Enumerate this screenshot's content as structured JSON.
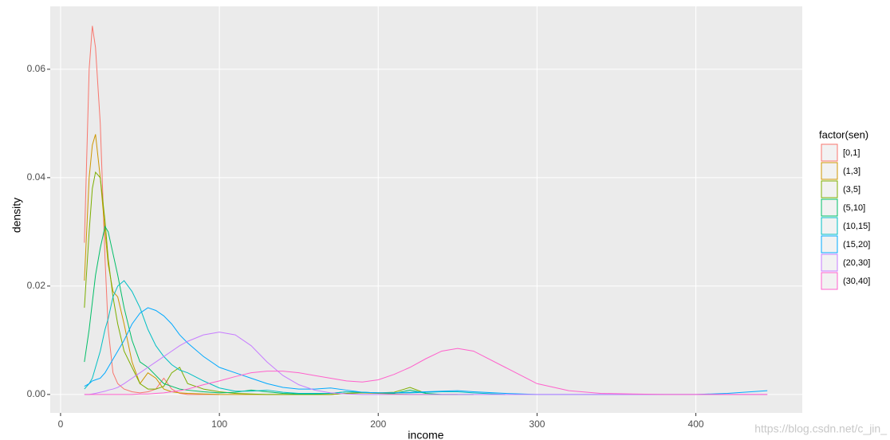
{
  "chart_data": {
    "type": "line",
    "x_label": "income",
    "y_label": "density",
    "legend_title": "factor(sen)",
    "watermark": "https://blog.csdn.net/c_jin_",
    "x": [
      15,
      18,
      20,
      22,
      25,
      28,
      30,
      33,
      36,
      40,
      45,
      50,
      55,
      60,
      65,
      70,
      75,
      80,
      90,
      100,
      110,
      120,
      130,
      140,
      150,
      160,
      170,
      180,
      190,
      200,
      210,
      220,
      230,
      240,
      250,
      260,
      280,
      300,
      320,
      340,
      360,
      380,
      400,
      420,
      445
    ],
    "series": [
      {
        "name": "[0,1]",
        "color": "#F8766D",
        "values": [
          0.028,
          0.06,
          0.068,
          0.064,
          0.05,
          0.025,
          0.012,
          0.004,
          0.002,
          0.001,
          0.0005,
          0.0003,
          0.0005,
          0.001,
          0.003,
          0.001,
          0.0002,
          0,
          0,
          0,
          null,
          null,
          null,
          null,
          null,
          null,
          null,
          null,
          null,
          null,
          null,
          null,
          null,
          null,
          null,
          null,
          null,
          null,
          null,
          null,
          null,
          null,
          null,
          null,
          null
        ]
      },
      {
        "name": "(1,3]",
        "color": "#CD9600",
        "values": [
          0.021,
          0.04,
          0.046,
          0.048,
          0.04,
          0.03,
          0.024,
          0.019,
          0.018,
          0.013,
          0.006,
          0.002,
          0.004,
          0.003,
          0.001,
          0.0005,
          0.0003,
          0.0002,
          0.0001,
          0,
          0,
          0,
          0,
          0,
          0,
          0,
          0,
          0.0002,
          0.0003,
          0.0002,
          0.0001,
          0,
          0,
          0,
          0,
          null,
          null,
          null,
          null,
          null,
          null,
          null,
          null,
          null,
          null
        ]
      },
      {
        "name": "(3,5]",
        "color": "#7CAE00",
        "values": [
          0.016,
          0.03,
          0.038,
          0.041,
          0.04,
          0.032,
          0.025,
          0.018,
          0.013,
          0.008,
          0.005,
          0.002,
          0.001,
          0.001,
          0.0015,
          0.004,
          0.005,
          0.002,
          0.001,
          0.0005,
          0.0002,
          0.0001,
          0,
          0,
          0,
          0,
          0,
          0.0002,
          0.0003,
          0.0003,
          0.0004,
          0.0013,
          0.0002,
          null,
          null,
          null,
          null,
          null,
          null,
          null,
          null,
          null,
          null,
          null,
          null
        ]
      },
      {
        "name": "(5,10]",
        "color": "#00BE67",
        "values": [
          0.006,
          0.012,
          0.017,
          0.022,
          0.027,
          0.031,
          0.03,
          0.026,
          0.022,
          0.016,
          0.01,
          0.006,
          0.005,
          0.0035,
          0.002,
          0.0015,
          0.001,
          0.0008,
          0.0005,
          0.0003,
          0.0004,
          0.0008,
          0.0005,
          0.0002,
          0.0001,
          0.0001,
          0.0002,
          0.0005,
          0.0004,
          0.0003,
          0.0002,
          0.0008,
          0.0002,
          0,
          0,
          0,
          null,
          null,
          null,
          null,
          null,
          null,
          null,
          null,
          null
        ]
      },
      {
        "name": "(10,15]",
        "color": "#00BFC4",
        "values": [
          0.001,
          0.002,
          0.003,
          0.005,
          0.008,
          0.012,
          0.014,
          0.018,
          0.02,
          0.021,
          0.019,
          0.016,
          0.012,
          0.009,
          0.007,
          0.0055,
          0.0045,
          0.004,
          0.0025,
          0.0012,
          0.0006,
          0.0006,
          0.0008,
          0.0004,
          0.0002,
          0.0002,
          0.0002,
          0.0005,
          0.0004,
          0.0003,
          0.0003,
          0.0003,
          0.0004,
          0.0005,
          0.0005,
          0.0003,
          0,
          null,
          null,
          null,
          null,
          null,
          null,
          null,
          null
        ]
      },
      {
        "name": "(15,20]",
        "color": "#00A9FF",
        "values": [
          0.0015,
          0.002,
          0.0025,
          0.0027,
          0.003,
          0.004,
          0.005,
          0.0065,
          0.008,
          0.01,
          0.013,
          0.015,
          0.016,
          0.0155,
          0.0145,
          0.013,
          0.011,
          0.0095,
          0.007,
          0.005,
          0.004,
          0.003,
          0.002,
          0.0013,
          0.001,
          0.001,
          0.0012,
          0.0008,
          0.0004,
          0.0003,
          0.0003,
          0.0004,
          0.0005,
          0.0006,
          0.0007,
          0.0005,
          0.0002,
          0,
          0,
          0,
          0,
          0,
          0,
          0.0002,
          0.0007
        ]
      },
      {
        "name": "(20,30]",
        "color": "#C77CFF",
        "values": [
          0,
          0,
          0.0001,
          0.0002,
          0.0004,
          0.0006,
          0.0008,
          0.001,
          0.0013,
          0.002,
          0.003,
          0.004,
          0.005,
          0.006,
          0.007,
          0.008,
          0.009,
          0.0098,
          0.011,
          0.0115,
          0.011,
          0.009,
          0.006,
          0.0035,
          0.0018,
          0.0008,
          0.0003,
          0.0001,
          0,
          0,
          0,
          0,
          0,
          0,
          0,
          0,
          0,
          0,
          0,
          0,
          0,
          0,
          0,
          0,
          0
        ]
      },
      {
        "name": "(30,40]",
        "color": "#FF61CC",
        "values": [
          0,
          0,
          0,
          0,
          0,
          0,
          0,
          0,
          0,
          0,
          0,
          0.0001,
          0.0001,
          0.0002,
          0.0003,
          0.0005,
          0.0007,
          0.001,
          0.0018,
          0.0025,
          0.0033,
          0.004,
          0.0043,
          0.0043,
          0.004,
          0.0035,
          0.003,
          0.0025,
          0.0023,
          0.0027,
          0.0037,
          0.005,
          0.0066,
          0.008,
          0.0085,
          0.008,
          0.005,
          0.002,
          0.0007,
          0.0002,
          0.0001,
          0,
          0,
          0,
          0
        ]
      }
    ],
    "xlim": [
      -6.5,
      467
    ],
    "ylim": [
      -0.0034,
      0.0716
    ],
    "xticks": [
      0,
      100,
      200,
      300,
      400
    ],
    "yticks": [
      {
        "value": 0,
        "label": "0.00"
      },
      {
        "value": 0.02,
        "label": "0.02"
      },
      {
        "value": 0.04,
        "label": "0.04"
      },
      {
        "value": 0.06,
        "label": "0.06"
      }
    ],
    "grid": true,
    "legend": "right"
  }
}
